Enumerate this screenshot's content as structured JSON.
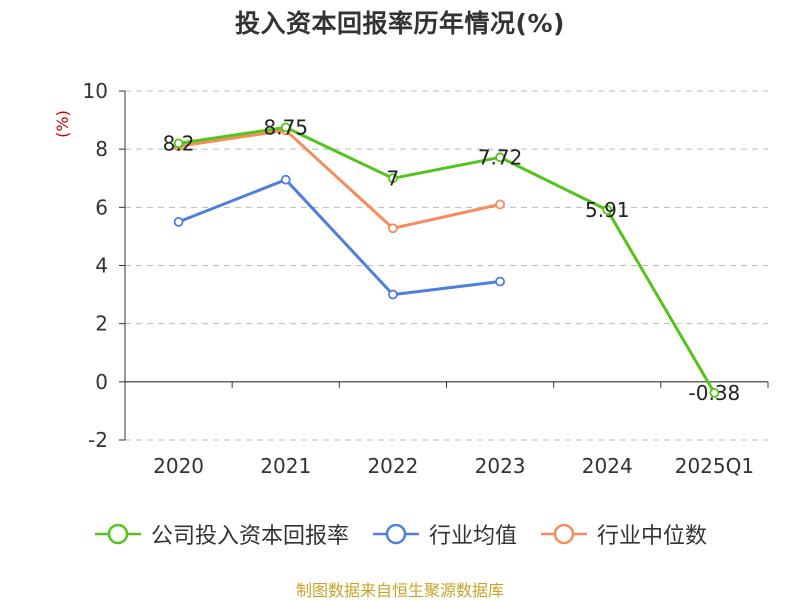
{
  "title": "投入资本回报率历年情况(%)",
  "source": "制图数据来自恒生聚源数据库",
  "colors": {
    "company": "#52c41a",
    "industry_avg": "#4e7fdb",
    "industry_median": "#f78c5a",
    "grid": "#bbbbbb",
    "axis": "#333333",
    "ylabel": "#cc0000",
    "source": "#c9a227"
  },
  "chart_data": {
    "type": "line",
    "title": "投入资本回报率历年情况(%)",
    "ylabel": "(%)",
    "xlabel": "",
    "categories": [
      "2020",
      "2021",
      "2022",
      "2023",
      "2024",
      "2025Q1"
    ],
    "ylim": [
      -2,
      10
    ],
    "yticks": [
      -2,
      0,
      2,
      4,
      6,
      8,
      10
    ],
    "grid": true,
    "legend_position": "bottom",
    "series": [
      {
        "name": "公司投入资本回报率",
        "color_key": "company",
        "values": [
          8.2,
          8.75,
          7,
          7.72,
          5.91,
          -0.38
        ],
        "labels": [
          "8.2",
          "8.75",
          "7",
          "7.72",
          "5.91",
          "-0.38"
        ]
      },
      {
        "name": "行业均值",
        "color_key": "industry_avg",
        "values": [
          5.5,
          6.95,
          3.0,
          3.45,
          null,
          null
        ]
      },
      {
        "name": "行业中位数",
        "color_key": "industry_median",
        "values": [
          8.1,
          8.65,
          5.28,
          6.1,
          null,
          null
        ]
      }
    ]
  }
}
